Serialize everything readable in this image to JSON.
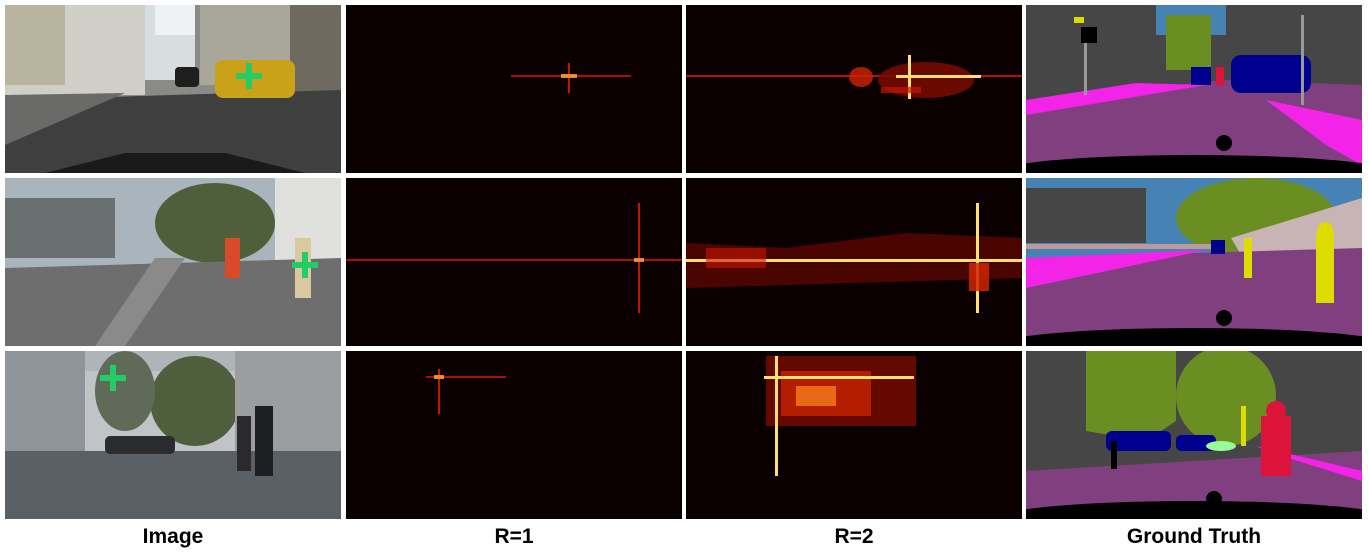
{
  "columns": [
    {
      "label": "Image"
    },
    {
      "label": "R=1"
    },
    {
      "label": "R=2"
    },
    {
      "label": "Ground Truth"
    }
  ],
  "rows": 3,
  "colors": {
    "heat_dark": "#0b0000",
    "heat_mid": "#c81400",
    "heat_bright": "#ffe070",
    "marker": "#22cc66",
    "road": "#804080",
    "sidewalk": "#f423e8",
    "building": "#464646",
    "vegetation": "#6b8e23",
    "sky": "#4682b4",
    "car": "#00008e",
    "person": "#dc143c",
    "pole": "#999999",
    "traffic_sign": "#dcdc00",
    "fence": "#be9999",
    "wall": "#c8b4b4"
  }
}
